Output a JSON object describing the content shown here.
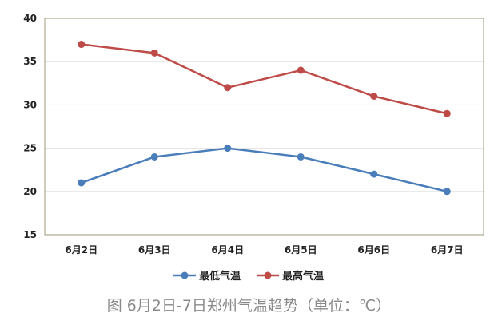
{
  "caption": "图 6月2日-7日郑州气温趋势（单位：℃）",
  "chart_data": {
    "type": "line",
    "title": "",
    "xlabel": "",
    "ylabel": "",
    "categories": [
      "6月2日",
      "6月3日",
      "6月4日",
      "6月5日",
      "6月6日",
      "6月7日"
    ],
    "ylim": [
      15,
      40
    ],
    "yticks": [
      15,
      20,
      25,
      30,
      35,
      40
    ],
    "grid": true,
    "legend_position": "bottom",
    "series": [
      {
        "name": "最低气温",
        "values": [
          21,
          24,
          25,
          24,
          22,
          20
        ],
        "color": "#4a7ebb"
      },
      {
        "name": "最高气温",
        "values": [
          37,
          36,
          32,
          34,
          31,
          29
        ],
        "color": "#be4b48"
      }
    ]
  }
}
